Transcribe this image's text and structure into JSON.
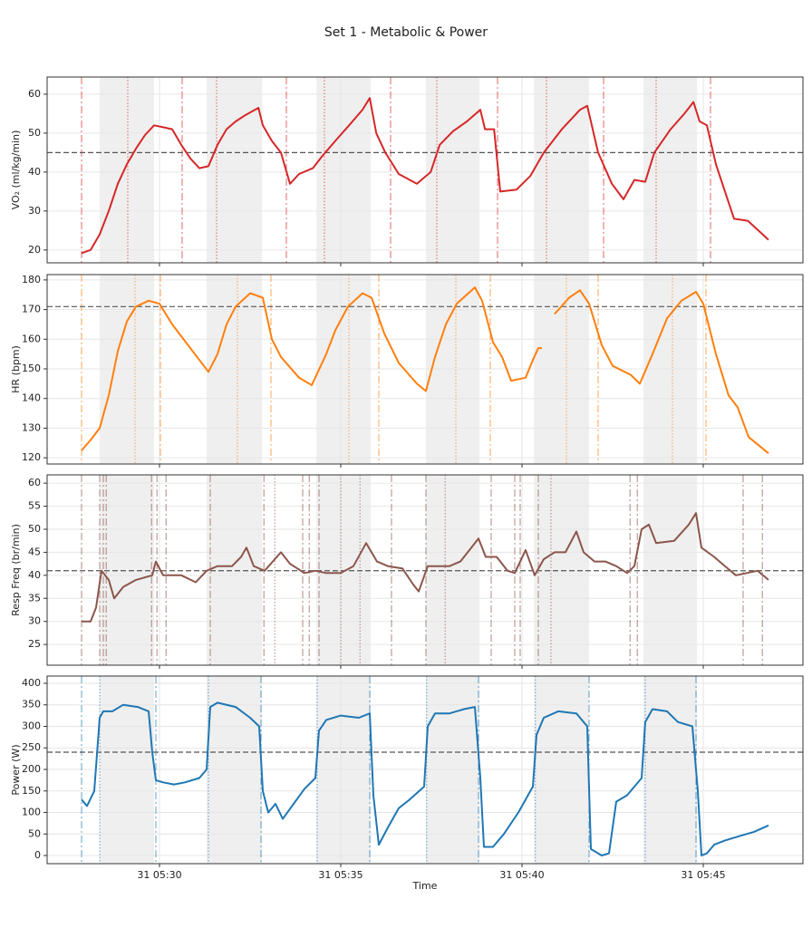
{
  "title": "Set 1 - Metabolic & Power",
  "chart_data": [
    {
      "type": "line",
      "ylabel": "VO₂ (ml/kg/min)",
      "color": "#d62728",
      "grid": true,
      "xlim": [
        26.9,
        47.75
      ],
      "ylim": [
        16.7,
        64.4
      ],
      "yticks": [
        20,
        30,
        40,
        50,
        60
      ],
      "hline": 45,
      "shaded": [
        [
          28.35,
          29.85
        ],
        [
          31.3,
          32.83
        ],
        [
          34.33,
          35.83
        ],
        [
          37.35,
          38.83
        ],
        [
          40.33,
          41.85
        ],
        [
          43.35,
          44.83
        ]
      ],
      "vlines": [
        27.85,
        30.625,
        33.5,
        36.375,
        39.325,
        42.25,
        45.2
      ],
      "vlines_dotted": [
        29.125,
        31.575,
        34.55,
        37.65,
        40.675,
        43.7
      ],
      "x": [
        27.85,
        28.1,
        28.35,
        28.6,
        28.85,
        29.1,
        29.35,
        29.6,
        29.85,
        30.1,
        30.35,
        30.6,
        30.85,
        31.1,
        31.35,
        31.6,
        31.85,
        32.1,
        32.35,
        32.73,
        32.85,
        33.1,
        33.35,
        33.6,
        33.85,
        34.23,
        34.48,
        34.85,
        35.23,
        35.6,
        35.8,
        35.98,
        36.23,
        36.6,
        37.1,
        37.48,
        37.73,
        38.1,
        38.48,
        38.85,
        38.98,
        39.23,
        39.4,
        39.85,
        40.23,
        40.6,
        41.1,
        41.6,
        41.8,
        42.1,
        42.48,
        42.8,
        43.1,
        43.4,
        43.65,
        44.1,
        44.48,
        44.73,
        44.9,
        45.1,
        45.35,
        45.6,
        45.85,
        46.23,
        46.8
      ],
      "values": [
        19.2,
        20,
        24,
        30,
        37,
        42,
        46,
        49.5,
        52,
        51.5,
        51,
        47,
        43.5,
        41,
        41.5,
        47,
        51,
        53,
        54.5,
        56.5,
        52,
        48,
        45,
        37,
        39.5,
        41,
        44,
        48,
        52,
        56,
        59,
        50,
        45,
        39.5,
        37,
        40,
        47,
        50.5,
        53,
        56,
        51,
        51,
        35,
        35.5,
        39,
        45,
        51,
        56,
        57,
        45,
        37,
        33,
        38,
        37.5,
        45,
        51,
        55,
        58,
        53,
        52,
        42,
        35,
        28,
        27.5,
        22.6
      ]
    },
    {
      "type": "line",
      "ylabel": "HR (bpm)",
      "color": "#ff7f0e",
      "grid": true,
      "xlim": [
        26.9,
        47.75
      ],
      "ylim": [
        117.9,
        181.8
      ],
      "yticks": [
        120,
        130,
        140,
        150,
        160,
        170,
        180
      ],
      "hline": 171,
      "shaded": [
        [
          28.35,
          29.85
        ],
        [
          31.3,
          32.83
        ],
        [
          34.33,
          35.83
        ],
        [
          37.35,
          38.83
        ],
        [
          40.33,
          41.85
        ],
        [
          43.35,
          44.83
        ]
      ],
      "vlines": [
        27.85,
        30.025,
        33.075,
        36.05,
        39.125,
        42.1,
        45.075
      ],
      "vlines_dotted": [
        29.325,
        32.15,
        35.225,
        38.175,
        41.225,
        44.15
      ],
      "x": [
        27.85,
        28.1,
        28.35,
        28.6,
        28.85,
        29.1,
        29.35,
        29.7,
        30.0,
        30.35,
        30.85,
        31.1,
        31.35,
        31.6,
        31.85,
        32.1,
        32.5,
        32.85,
        33.1,
        33.35,
        33.85,
        34.2,
        34.6,
        34.85,
        35.2,
        35.6,
        35.85,
        36.2,
        36.6,
        37.1,
        37.35,
        37.6,
        37.9,
        38.2,
        38.7,
        38.9,
        39.2,
        39.45,
        39.7,
        40.1,
        40.3,
        40.45,
        40.55,
        40.7,
        40.9,
        41.3,
        41.6,
        41.85,
        42.2,
        42.5,
        43.0,
        43.25,
        43.6,
        44.0,
        44.4,
        44.8,
        45.0,
        45.35,
        45.7,
        45.95,
        46.25,
        46.8
      ],
      "values": [
        122.5,
        126,
        130,
        141,
        156,
        166,
        171,
        173,
        172,
        165,
        157,
        153,
        149,
        155,
        165,
        171,
        175.5,
        174,
        160,
        154,
        147,
        144.5,
        155,
        163,
        171,
        175.5,
        174,
        162,
        152,
        145,
        142.5,
        154,
        165,
        172,
        177.5,
        173,
        159,
        154,
        146,
        147,
        153,
        157,
        157,
        null,
        168.5,
        174,
        176.5,
        172,
        158,
        151,
        148,
        145,
        155,
        167,
        173,
        176,
        172,
        155,
        141,
        137,
        127,
        121.5
      ]
    },
    {
      "type": "line",
      "ylabel": "Resp Freq (br/min)",
      "color": "#8c564b",
      "grid": true,
      "xlim": [
        26.9,
        47.75
      ],
      "ylim": [
        20.5,
        61.8
      ],
      "yticks": [
        25,
        30,
        35,
        40,
        45,
        50,
        55,
        60
      ],
      "hline": 41,
      "shaded": [
        [
          28.35,
          29.85
        ],
        [
          31.3,
          32.83
        ],
        [
          34.33,
          35.83
        ],
        [
          37.35,
          38.83
        ],
        [
          40.33,
          41.85
        ],
        [
          43.35,
          44.83
        ]
      ],
      "vlines": [
        27.85,
        28.35,
        28.45,
        28.53,
        29.78,
        29.93,
        30.18,
        31.4,
        32.88,
        33.95,
        34.13,
        34.4,
        36.4,
        37.35,
        39.15,
        39.8,
        39.95,
        40.45,
        42.98,
        43.18,
        46.1,
        46.63
      ],
      "vlines_dotted": [
        33.18,
        35.0,
        35.53,
        37.88,
        40.8
      ],
      "x": [
        27.85,
        28.1,
        28.25,
        28.4,
        28.6,
        28.75,
        29.0,
        29.35,
        29.8,
        29.9,
        30.1,
        30.6,
        31.0,
        31.3,
        31.6,
        32.0,
        32.25,
        32.4,
        32.6,
        32.9,
        33.35,
        33.6,
        34.0,
        34.3,
        34.6,
        35.0,
        35.35,
        35.7,
        36.0,
        36.3,
        36.7,
        37.0,
        37.15,
        37.4,
        37.6,
        38.0,
        38.3,
        38.8,
        39.0,
        39.3,
        39.6,
        39.8,
        40.1,
        40.35,
        40.6,
        40.9,
        41.2,
        41.5,
        41.7,
        42.0,
        42.3,
        42.6,
        42.9,
        43.1,
        43.3,
        43.5,
        43.7,
        44.2,
        44.6,
        44.8,
        44.95,
        45.3,
        45.6,
        45.9,
        46.2,
        46.5,
        46.8
      ],
      "values": [
        30,
        30,
        33,
        41,
        39,
        35,
        37.5,
        39,
        40,
        43,
        40,
        40,
        38.5,
        41,
        42,
        42,
        44,
        46,
        42,
        41,
        45,
        42.5,
        40.5,
        41,
        40.5,
        40.5,
        42,
        47,
        43,
        42,
        41.5,
        38,
        36.5,
        42,
        42,
        42,
        43,
        48,
        44,
        44,
        41,
        40.5,
        45.5,
        40,
        43.5,
        45,
        45,
        49.5,
        45,
        43,
        43,
        42,
        40.5,
        42,
        50,
        51,
        47,
        47.5,
        51,
        53.5,
        46,
        44,
        42,
        40,
        40.5,
        41,
        39
      ]
    },
    {
      "type": "line",
      "ylabel": "Power (W)",
      "xlabel": "Time",
      "color": "#1f77b4",
      "grid": true,
      "xlim": [
        26.9,
        47.75
      ],
      "ylim": [
        -18.9,
        416.8
      ],
      "yticks": [
        0,
        50,
        100,
        150,
        200,
        250,
        300,
        350,
        400
      ],
      "hline": 240,
      "xticks": [
        {
          "value": 30,
          "label": "31 05:30"
        },
        {
          "value": 35,
          "label": "31 05:35"
        },
        {
          "value": 40,
          "label": "31 05:40"
        },
        {
          "value": 45,
          "label": "31 05:45"
        }
      ],
      "shaded": [
        [
          28.35,
          29.85
        ],
        [
          31.3,
          32.83
        ],
        [
          34.33,
          35.83
        ],
        [
          37.35,
          38.83
        ],
        [
          40.33,
          41.85
        ],
        [
          43.35,
          44.83
        ]
      ],
      "vlines": [
        27.85,
        29.9,
        32.8,
        35.8,
        38.8,
        41.85,
        44.8
      ],
      "vlines_dotted": [
        28.35,
        31.35,
        34.35,
        37.37,
        40.37,
        43.4
      ],
      "x": [
        27.85,
        28.0,
        28.2,
        28.35,
        28.45,
        28.7,
        29.0,
        29.4,
        29.7,
        29.8,
        29.9,
        30.1,
        30.4,
        30.7,
        31.1,
        31.3,
        31.4,
        31.6,
        32.1,
        32.5,
        32.75,
        32.85,
        33.0,
        33.2,
        33.4,
        33.7,
        34.0,
        34.3,
        34.4,
        34.6,
        35.0,
        35.5,
        35.8,
        35.9,
        36.05,
        36.3,
        36.6,
        36.9,
        37.3,
        37.4,
        37.6,
        38.0,
        38.4,
        38.7,
        38.85,
        38.95,
        39.2,
        39.5,
        39.9,
        40.3,
        40.4,
        40.6,
        41.0,
        41.5,
        41.8,
        41.9,
        42.2,
        42.4,
        42.6,
        42.9,
        43.3,
        43.4,
        43.6,
        44.0,
        44.3,
        44.7,
        44.85,
        44.95,
        45.1,
        45.3,
        45.6,
        46.0,
        46.4,
        46.8
      ],
      "values": [
        130,
        115,
        150,
        320,
        335,
        335,
        350,
        345,
        335,
        240,
        175,
        170,
        165,
        170,
        180,
        200,
        345,
        355,
        345,
        320,
        300,
        150,
        100,
        120,
        85,
        120,
        155,
        180,
        290,
        315,
        325,
        320,
        330,
        140,
        25,
        65,
        110,
        130,
        160,
        300,
        330,
        330,
        340,
        345,
        180,
        20,
        20,
        50,
        100,
        160,
        280,
        320,
        335,
        330,
        300,
        15,
        0,
        5,
        125,
        140,
        180,
        310,
        340,
        335,
        310,
        300,
        150,
        0,
        5,
        25,
        35,
        45,
        55,
        70
      ]
    }
  ]
}
